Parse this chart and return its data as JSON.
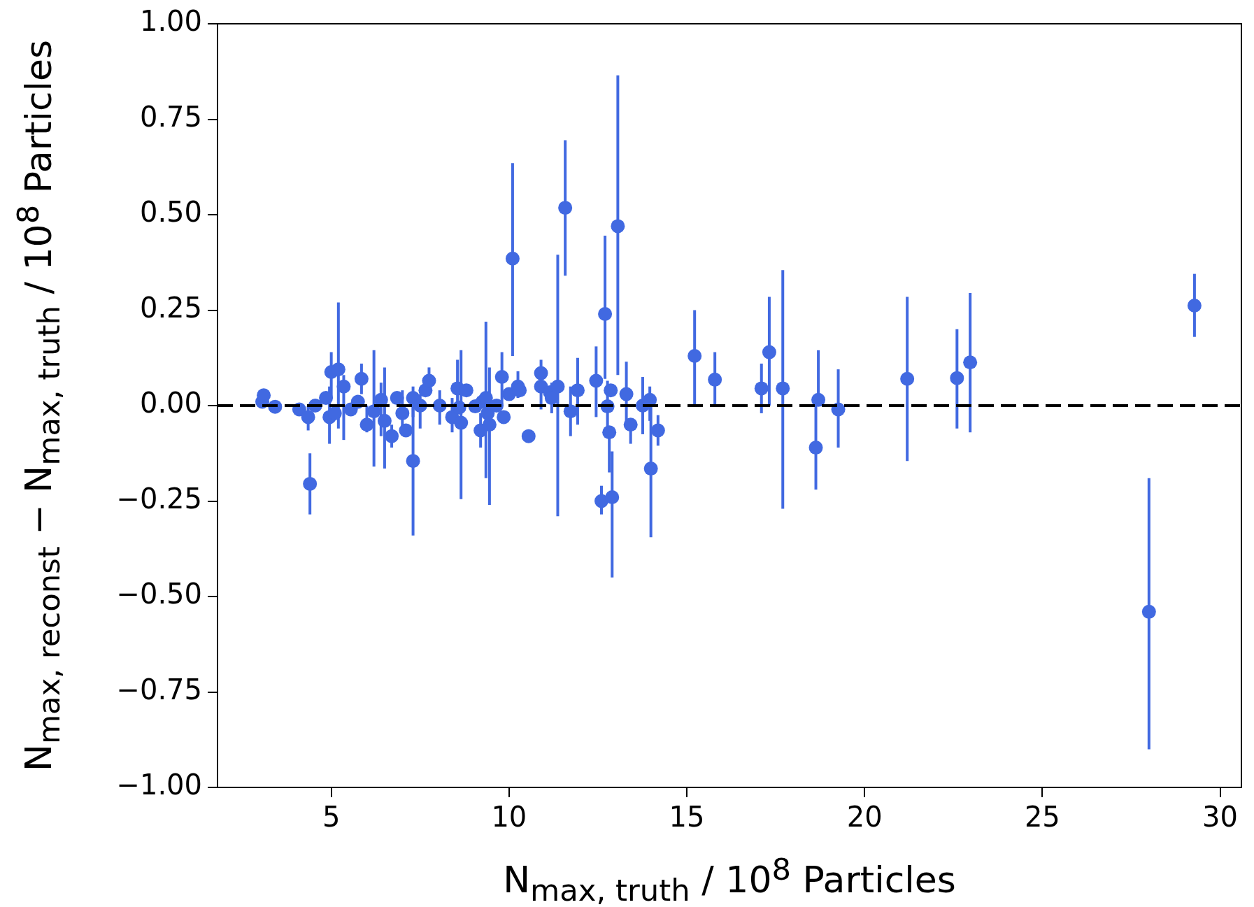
{
  "chart_data": {
    "type": "scatter",
    "xlabel": "N$_{max, truth}$ / 10$^{8}$ Particles",
    "ylabel": "N$_{max, reconst}$ − N$_{max, truth}$ / 10$^{8}$ Particles",
    "xlim": [
      1.8,
      30.6
    ],
    "xticks": [
      5,
      10,
      15,
      20,
      25,
      30
    ],
    "ylim": [
      -1,
      1
    ],
    "yticks": [
      {
        "value": -1,
        "label": "−1.00"
      },
      {
        "value": -0.75,
        "label": "−0.75"
      },
      {
        "value": -0.5,
        "label": "−0.50"
      },
      {
        "value": -0.25,
        "label": "−0.25"
      },
      {
        "value": 0,
        "label": "0.00"
      },
      {
        "value": 0.25,
        "label": "0.25"
      },
      {
        "value": 0.5,
        "label": "0.50"
      },
      {
        "value": 0.75,
        "label": "0.75"
      },
      {
        "value": 1,
        "label": "1.00"
      }
    ],
    "grid": false,
    "legend": false,
    "marker": "circle",
    "ref_lines": [
      {
        "axis": "y",
        "value": 0,
        "label": null,
        "color": "#000000",
        "line_style": "dashed"
      }
    ],
    "series": [
      {
        "color": "#4169e1",
        "x": [
          3.06,
          3.1,
          3.42,
          4.1,
          4.35,
          4.4,
          4.55,
          4.85,
          4.95,
          5.0,
          5.2,
          5.35,
          5.1,
          5.55,
          5.85,
          5.75,
          6.0,
          6.2,
          6.4,
          6.5,
          6.7,
          6.85,
          7.0,
          7.1,
          7.3,
          7.3,
          7.5,
          7.65,
          7.75,
          8.05,
          8.4,
          8.55,
          8.65,
          8.6,
          8.8,
          9.05,
          9.2,
          9.25,
          9.35,
          9.45,
          9.4,
          9.65,
          9.8,
          9.85,
          10.0,
          10.1,
          10.25,
          10.3,
          10.55,
          10.9,
          10.9,
          11.15,
          11.2,
          11.37,
          11.58,
          11.73,
          11.93,
          12.45,
          12.6,
          12.7,
          12.77,
          12.82,
          12.86,
          12.9,
          13.06,
          13.3,
          13.42,
          13.76,
          13.96,
          13.99,
          14.19,
          15.22,
          15.79,
          17.1,
          17.32,
          17.7,
          18.63,
          18.7,
          19.26,
          21.2,
          22.6,
          22.97,
          28.0,
          29.28
        ],
        "values": [
          0.01,
          0.027,
          -0.003,
          -0.01,
          -0.03,
          -0.205,
          0.0,
          0.02,
          -0.03,
          0.088,
          0.095,
          0.05,
          -0.02,
          -0.01,
          0.07,
          0.01,
          -0.05,
          -0.015,
          0.015,
          -0.04,
          -0.08,
          0.02,
          -0.02,
          -0.065,
          -0.145,
          0.02,
          0.0,
          0.04,
          0.065,
          0.0,
          -0.03,
          0.045,
          -0.045,
          -0.005,
          0.04,
          -0.002,
          -0.065,
          0.01,
          0.02,
          -0.05,
          -0.02,
          0.0,
          0.075,
          -0.03,
          0.03,
          0.385,
          0.05,
          0.04,
          -0.08,
          0.085,
          0.05,
          0.035,
          0.02,
          0.05,
          0.518,
          -0.015,
          0.04,
          0.065,
          -0.25,
          0.24,
          -0.002,
          -0.07,
          0.04,
          -0.24,
          0.47,
          0.03,
          -0.05,
          0.0,
          0.015,
          -0.165,
          -0.065,
          0.13,
          0.068,
          0.045,
          0.14,
          0.045,
          -0.11,
          0.015,
          -0.01,
          0.07,
          0.072,
          0.113,
          -0.54,
          0.262
        ],
        "errors": [
          null,
          null,
          null,
          null,
          [
            -0.065,
            0.0
          ],
          [
            -0.285,
            -0.125
          ],
          null,
          null,
          [
            -0.1,
            0.05
          ],
          [
            0.02,
            0.14
          ],
          [
            -0.06,
            0.27
          ],
          [
            -0.09,
            0.08
          ],
          null,
          null,
          [
            0.03,
            0.11
          ],
          null,
          [
            -0.07,
            0.0
          ],
          [
            -0.16,
            0.145
          ],
          [
            -0.08,
            0.06
          ],
          [
            -0.165,
            0.1
          ],
          [
            -0.11,
            -0.05
          ],
          null,
          [
            -0.07,
            0.04
          ],
          null,
          [
            -0.34,
            0.0
          ],
          [
            -0.03,
            0.05
          ],
          [
            -0.06,
            0.03
          ],
          null,
          [
            0.03,
            0.1
          ],
          [
            -0.05,
            0.04
          ],
          [
            -0.07,
            0.02
          ],
          [
            0.0,
            0.12
          ],
          [
            -0.245,
            0.145
          ],
          null,
          null,
          null,
          [
            -0.11,
            -0.02
          ],
          null,
          [
            -0.19,
            0.22
          ],
          [
            -0.26,
            0.1
          ],
          null,
          null,
          [
            0.0,
            0.14
          ],
          null,
          null,
          [
            0.13,
            0.635
          ],
          [
            0.02,
            0.09
          ],
          null,
          null,
          [
            0.085,
            0.12
          ],
          [
            -0.01,
            0.1
          ],
          null,
          [
            -0.02,
            0.06
          ],
          [
            -0.29,
            0.395
          ],
          [
            0.34,
            0.695
          ],
          [
            -0.08,
            0.05
          ],
          [
            -0.05,
            0.125
          ],
          [
            -0.03,
            0.155
          ],
          [
            -0.285,
            -0.21
          ],
          [
            0.07,
            0.445
          ],
          [
            -0.06,
            0.065
          ],
          [
            -0.175,
            -0.07
          ],
          null,
          [
            -0.45,
            -0.12
          ],
          [
            0.08,
            0.865
          ],
          [
            -0.05,
            0.115
          ],
          [
            -0.1,
            -0.05
          ],
          [
            -0.075,
            0.075
          ],
          [
            -0.04,
            0.05
          ],
          [
            -0.345,
            0.0
          ],
          [
            -0.105,
            -0.025
          ],
          [
            0.0,
            0.25
          ],
          [
            0.0,
            0.14
          ],
          [
            -0.02,
            0.11
          ],
          [
            0.0,
            0.285
          ],
          [
            -0.27,
            0.355
          ],
          [
            -0.22,
            0.0
          ],
          [
            0.0,
            0.145
          ],
          [
            -0.11,
            0.095
          ],
          [
            -0.145,
            0.285
          ],
          [
            -0.06,
            0.2
          ],
          [
            -0.07,
            0.295
          ],
          [
            -0.9,
            -0.19
          ],
          [
            0.18,
            0.345
          ]
        ]
      }
    ]
  }
}
